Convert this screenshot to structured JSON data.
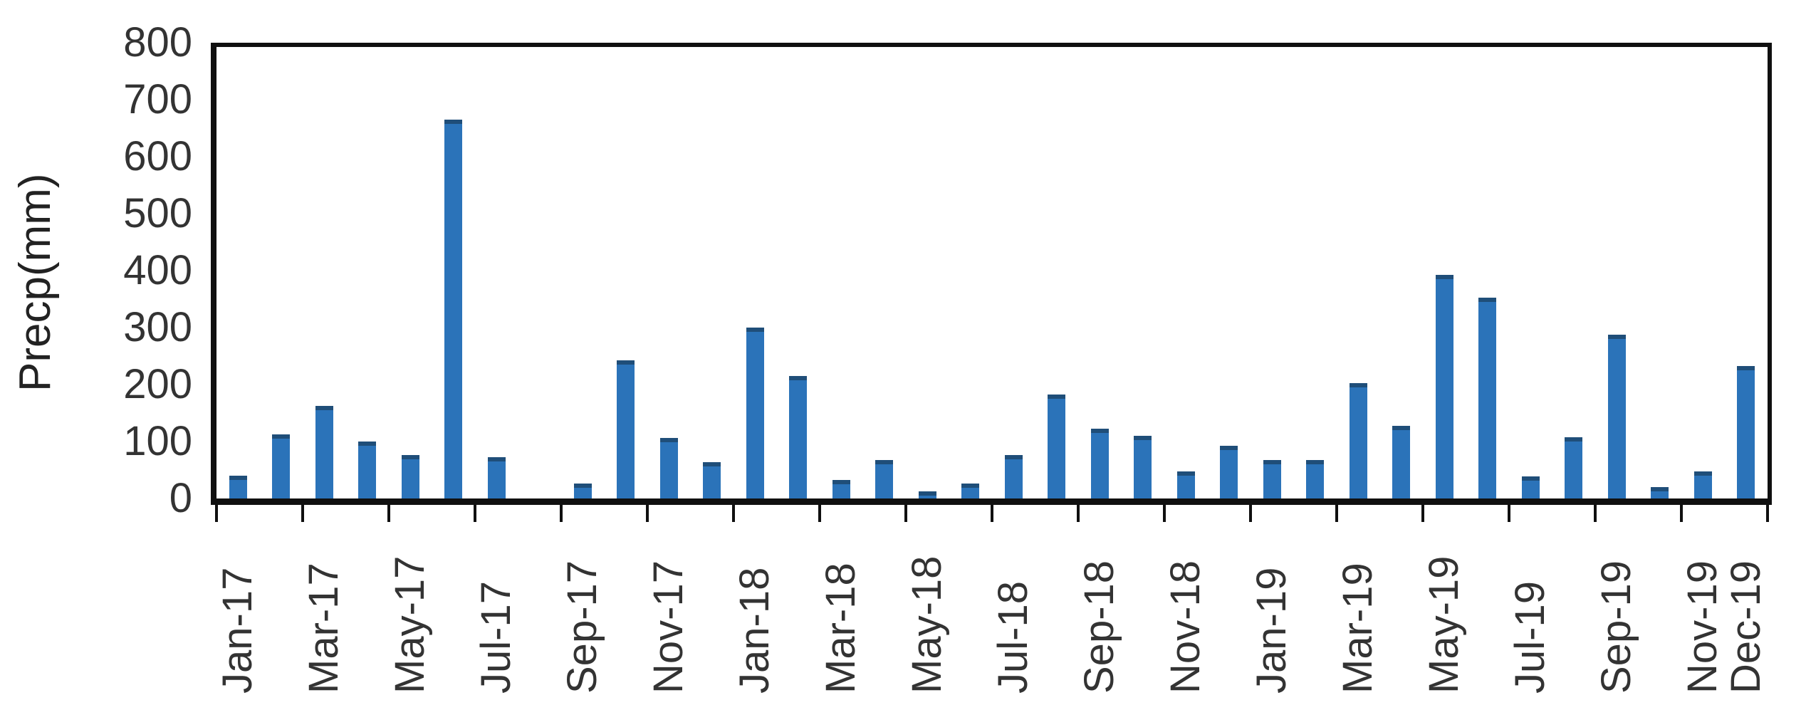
{
  "chart_data": {
    "type": "bar",
    "title": "",
    "xlabel": "",
    "ylabel": "Precp(mm)",
    "ylim": [
      0,
      800
    ],
    "yticks": [
      0,
      100,
      200,
      300,
      400,
      500,
      600,
      700,
      800
    ],
    "grid": false,
    "legend_position": "none",
    "x_tick_label_rotation_deg": 90,
    "x_tick_labels": [
      "Jan-17",
      "Mar-17",
      "May-17",
      "Jul-17",
      "Sep-17",
      "Nov-17",
      "Jan-18",
      "Mar-18",
      "May-18",
      "Jul-18",
      "Sep-18",
      "Nov-18",
      "Jan-19",
      "Mar-19",
      "May-19",
      "Jul-19",
      "Sep-19",
      "Nov-19",
      "Dec-19"
    ],
    "categories": [
      "Jan-17",
      "Feb-17",
      "Mar-17",
      "Apr-17",
      "May-17",
      "Jun-17",
      "Jul-17",
      "Aug-17",
      "Sep-17",
      "Oct-17",
      "Nov-17",
      "Dec-17",
      "Jan-18",
      "Feb-18",
      "Mar-18",
      "Apr-18",
      "May-18",
      "Jun-18",
      "Jul-18",
      "Aug-18",
      "Sep-18",
      "Oct-18",
      "Nov-18",
      "Dec-18",
      "Jan-19",
      "Feb-19",
      "Mar-19",
      "Apr-19",
      "May-19",
      "Jun-19",
      "Jul-19",
      "Aug-19",
      "Sep-19",
      "Oct-19",
      "Nov-19",
      "Dec-19"
    ],
    "values": [
      40,
      113,
      162,
      100,
      76,
      665,
      72,
      0,
      26,
      242,
      106,
      64,
      300,
      215,
      32,
      67,
      12,
      26,
      76,
      182,
      122,
      110,
      47,
      93,
      68,
      67,
      202,
      128,
      392,
      352,
      39,
      108,
      287,
      20,
      47,
      232
    ],
    "series_name": "Precp",
    "bar_color": "#2B73B9",
    "bar_cap_color": "#1F4E79",
    "axis_color": "#101010",
    "text_color": "#333333"
  }
}
